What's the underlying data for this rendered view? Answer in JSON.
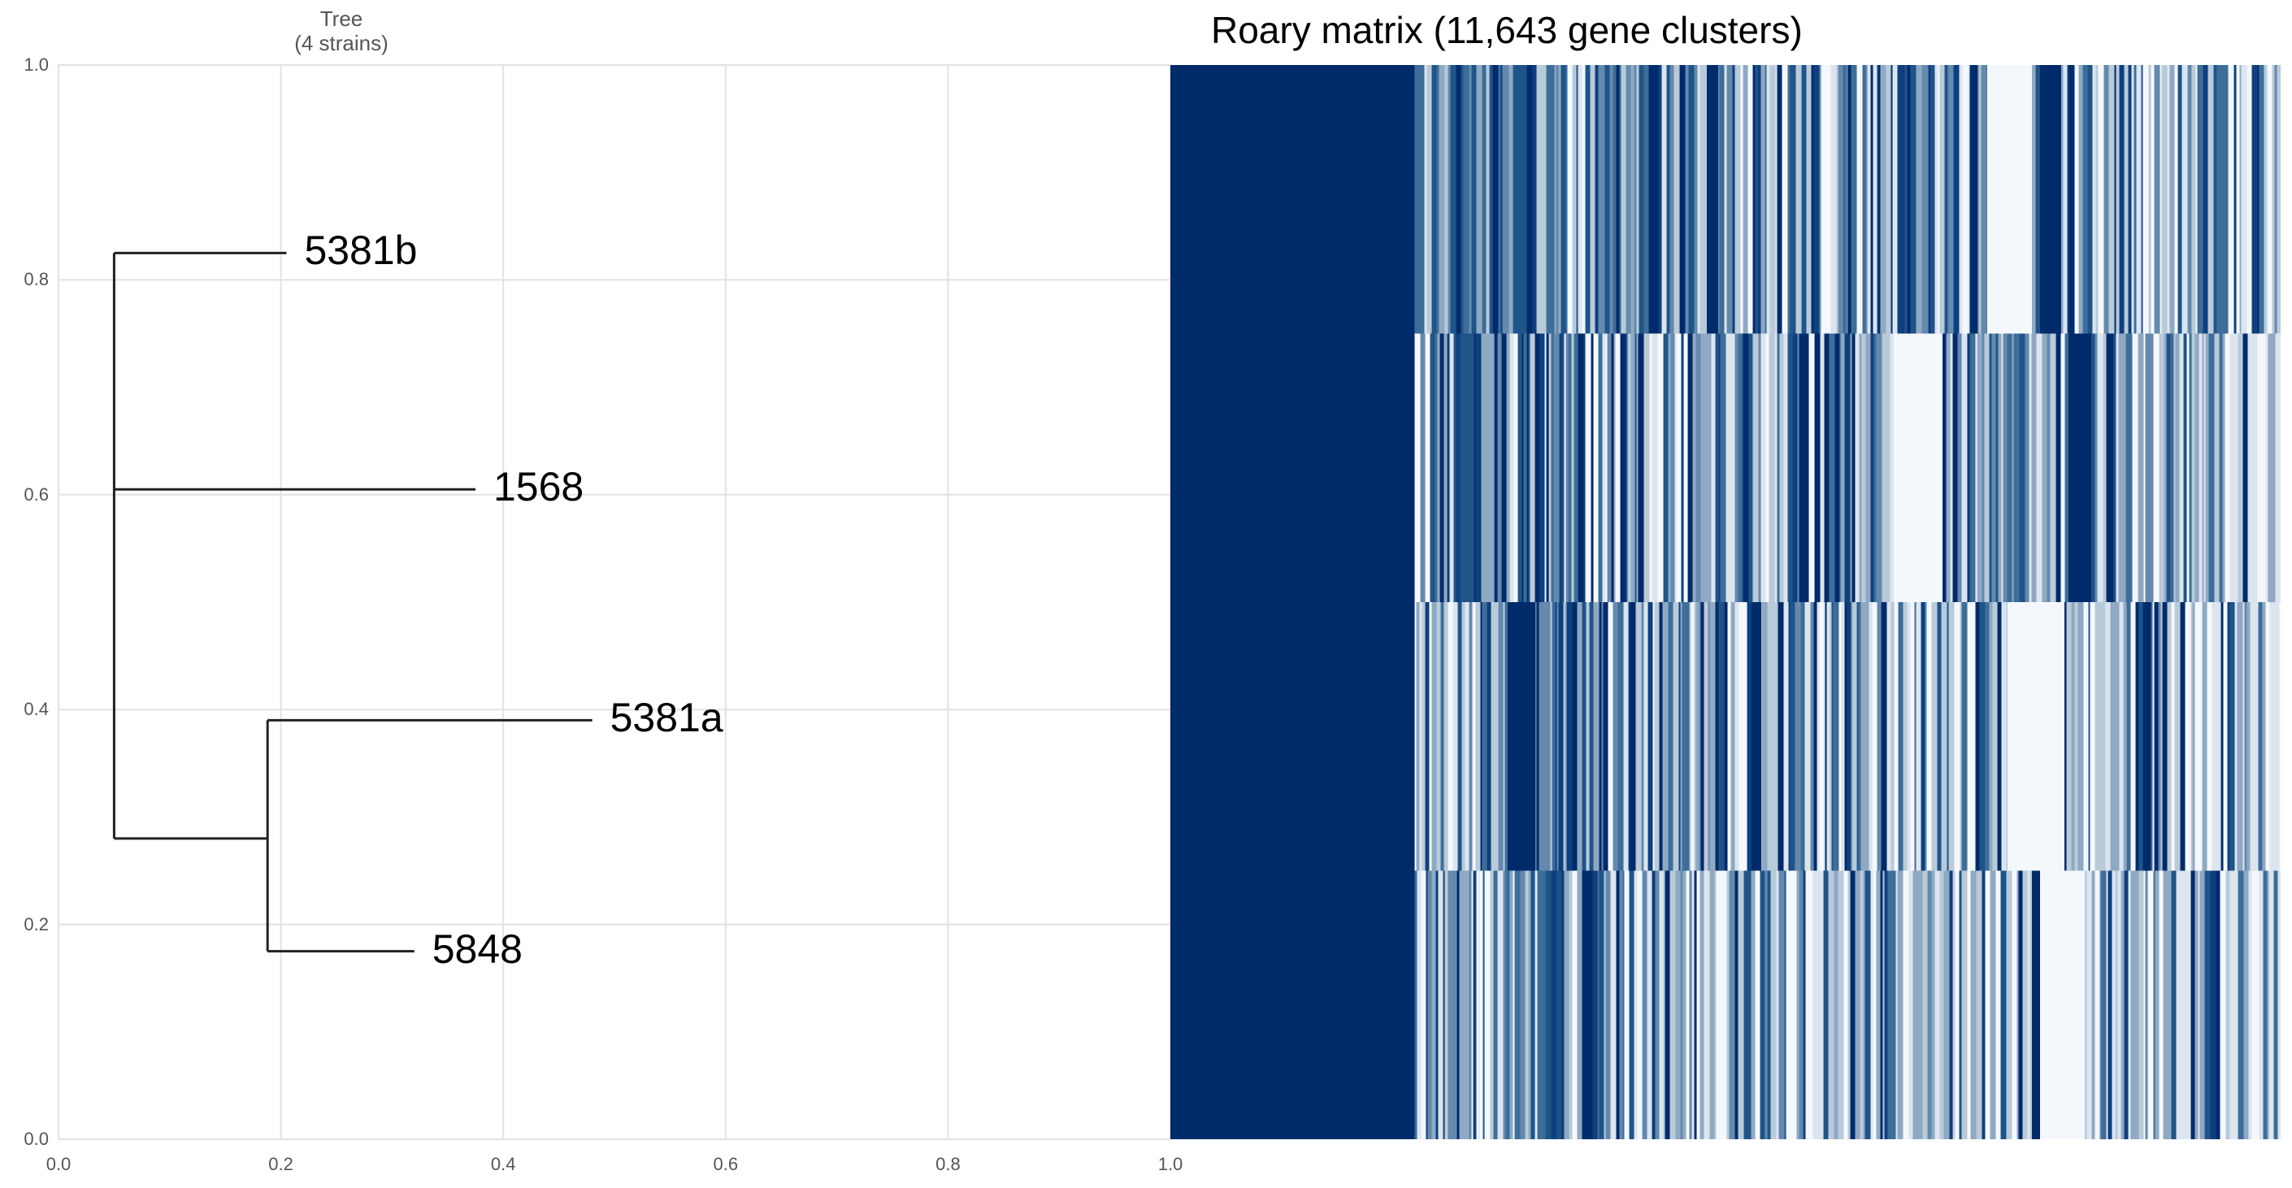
{
  "tree": {
    "title": "Tree",
    "subtitle": "(4 strains)"
  },
  "matrix": {
    "title": "Roary matrix (11,643 gene clusters)"
  },
  "colors": {
    "present": "#002b6b",
    "absent": "#f4f8fc",
    "grid": "#e2e2e2",
    "branch": "#222222",
    "tick": "#555555"
  },
  "chart_data": [
    {
      "type": "dendrogram",
      "title": "Tree (4 strains)",
      "xlim": [
        0.0,
        1.0
      ],
      "ylim": [
        0.0,
        1.0
      ],
      "xticks": [
        "0.0",
        "0.2",
        "0.4",
        "0.6",
        "0.8",
        "1.0"
      ],
      "yticks": [
        "0.0",
        "0.2",
        "0.4",
        "0.6",
        "0.8",
        "1.0"
      ],
      "grid": true,
      "nodes": [
        {
          "id": "root",
          "x": 0.05,
          "y": 0.28
        },
        {
          "id": "inner",
          "x": 0.188,
          "y": 0.28
        },
        {
          "id": "star",
          "x": 0.05,
          "y": 0.61
        }
      ],
      "leaves": [
        {
          "label": "5381b",
          "x": 0.205,
          "y": 0.825,
          "parent_x": 0.05
        },
        {
          "label": "1568",
          "x": 0.375,
          "y": 0.605,
          "parent_x": 0.05
        },
        {
          "label": "5381a",
          "x": 0.48,
          "y": 0.39,
          "parent_x": 0.188
        },
        {
          "label": "5848",
          "x": 0.32,
          "y": 0.175,
          "parent_x": 0.188
        }
      ],
      "backbone": {
        "x": 0.05,
        "y_top": 0.825,
        "y_bottom": 0.28
      },
      "inner_clade": {
        "x": 0.188,
        "y_top": 0.39,
        "y_bottom": 0.175
      }
    },
    {
      "type": "heatmap",
      "title": "Roary matrix (11,643 gene clusters)",
      "rows": [
        "5381b",
        "1568",
        "5381a",
        "5848"
      ],
      "n_columns": 11643,
      "core_fraction": 0.22,
      "values": "1 = gene cluster present (dark blue), 0 = absent (white)"
    }
  ]
}
